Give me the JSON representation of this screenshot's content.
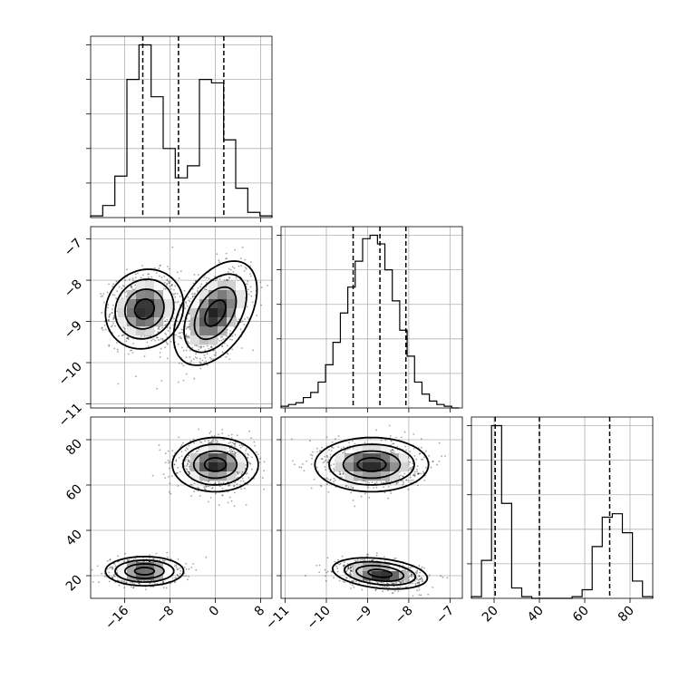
{
  "chart_data": {
    "type": "corner",
    "description_note": "",
    "grid": true,
    "params": [
      {
        "range": [
          -22,
          10
        ],
        "ticks": [
          -16,
          -8,
          0,
          8
        ],
        "tick_labels": [
          "−16",
          "−8",
          "0",
          "8"
        ]
      },
      {
        "range": [
          -11.1,
          -6.7
        ],
        "ticks": [
          -11,
          -10,
          -9,
          -8,
          -7
        ],
        "tick_labels": [
          "−11",
          "−10",
          "−9",
          "−8",
          "−7"
        ]
      },
      {
        "range": [
          10,
          90
        ],
        "ticks": [
          20,
          40,
          60,
          80
        ],
        "tick_labels": [
          "20",
          "40",
          "60",
          "80"
        ]
      }
    ],
    "marginals": [
      {
        "param": 0,
        "bin_edges": [
          -22,
          -19.87,
          -17.73,
          -15.6,
          -13.47,
          -11.33,
          -9.2,
          -7.07,
          -4.93,
          -2.8,
          -0.67,
          1.47,
          3.6,
          5.73,
          7.87,
          10
        ],
        "counts": [
          1,
          7,
          24,
          80,
          100,
          70,
          40,
          23,
          30,
          80,
          78,
          45,
          17,
          3,
          1
        ],
        "quantiles": [
          -12.8,
          -6.5,
          1.5
        ]
      },
      {
        "param": 1,
        "bin_edges": [
          -11.1,
          -10.92,
          -10.74,
          -10.56,
          -10.38,
          -10.2,
          -10.02,
          -9.84,
          -9.66,
          -9.48,
          -9.3,
          -9.12,
          -8.94,
          -8.76,
          -8.58,
          -8.4,
          -8.22,
          -8.04,
          -7.86,
          -7.68,
          -7.5,
          -7.32,
          -7.14,
          -6.96,
          -6.78
        ],
        "counts": [
          1,
          2,
          3,
          6,
          9,
          15,
          25,
          38,
          55,
          70,
          85,
          98,
          100,
          95,
          80,
          62,
          45,
          30,
          15,
          8,
          4,
          2,
          1,
          0
        ],
        "quantiles": [
          -9.35,
          -8.7,
          -8.07
        ]
      },
      {
        "param": 2,
        "bin_edges": [
          10,
          14.44,
          18.88,
          23.32,
          27.76,
          32.2,
          36.64,
          41.08,
          45.52,
          49.96,
          54.4,
          58.84,
          63.28,
          67.72,
          72.16,
          76.6,
          81.04,
          85.48,
          90
        ],
        "counts": [
          1,
          22,
          100,
          55,
          6,
          1,
          0,
          0,
          0,
          0,
          1,
          5,
          30,
          47,
          49,
          38,
          10,
          1
        ],
        "quantiles": [
          20.5,
          40.0,
          71.0
        ]
      }
    ],
    "pairs": [
      {
        "x_param": 0,
        "y_param": 1,
        "modes": [
          {
            "cx": -12.5,
            "cy": -8.7,
            "sx": 3.0,
            "sy": 0.42,
            "rho": 0.1,
            "weight": 0.5
          },
          {
            "cx": 0.0,
            "cy": -8.8,
            "sx": 3.2,
            "sy": 0.55,
            "rho": 0.45,
            "weight": 0.5
          }
        ]
      },
      {
        "x_param": 0,
        "y_param": 2,
        "modes": [
          {
            "cx": -12.5,
            "cy": 22.0,
            "sx": 3.0,
            "sy": 2.8,
            "rho": 0.0,
            "weight": 0.5
          },
          {
            "cx": 0.0,
            "cy": 69.0,
            "sx": 3.3,
            "sy": 5.2,
            "rho": 0.0,
            "weight": 0.5
          }
        ]
      },
      {
        "x_param": 1,
        "y_param": 2,
        "modes": [
          {
            "cx": -8.7,
            "cy": 21.0,
            "sx": 0.5,
            "sy": 3.0,
            "rho": -0.3,
            "weight": 0.5
          },
          {
            "cx": -8.9,
            "cy": 69.0,
            "sx": 0.6,
            "sy": 5.2,
            "rho": 0.0,
            "weight": 0.5
          }
        ]
      }
    ],
    "contour_levels_sigma": [
      0.5,
      1.0,
      1.5,
      2.0
    ]
  }
}
